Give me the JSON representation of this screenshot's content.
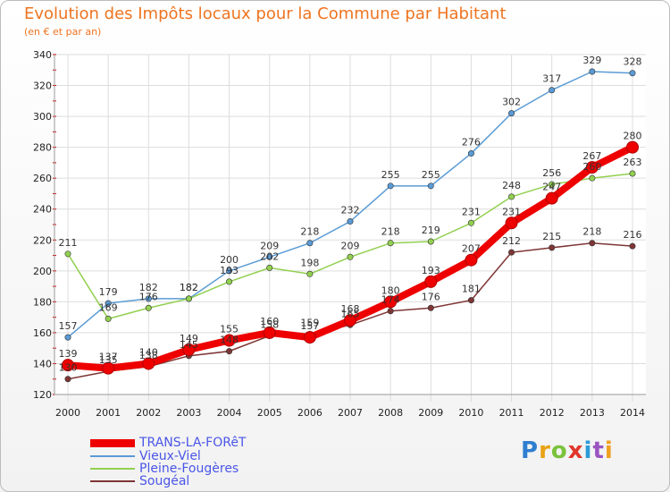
{
  "chart_data": {
    "type": "line",
    "title": "Evolution des Impôts locaux pour la Commune par Habitant",
    "subtitle": "(en € et par an)",
    "xlabel": "",
    "ylabel": "",
    "ylim": [
      120,
      340
    ],
    "yticks": [
      120,
      140,
      160,
      180,
      200,
      220,
      240,
      260,
      280,
      300,
      320,
      340
    ],
    "x": [
      "2000",
      "2001",
      "2002",
      "2003",
      "2004",
      "2005",
      "2006",
      "2007",
      "2008",
      "2009",
      "2010",
      "2011",
      "2012",
      "2013",
      "2014"
    ],
    "series": [
      {
        "name": "TRANS-LA-FORêT",
        "color": "#ee0000",
        "values": [
          139,
          137,
          140,
          149,
          155,
          160,
          157,
          168,
          180,
          193,
          207,
          231,
          247,
          267,
          280
        ]
      },
      {
        "name": "Vieux-Viel",
        "color": "#5a9bd5",
        "values": [
          157,
          179,
          182,
          182,
          200,
          209,
          218,
          232,
          255,
          255,
          276,
          302,
          317,
          329,
          328
        ]
      },
      {
        "name": "Pleine-Fougères",
        "color": "#92d050",
        "values": [
          211,
          169,
          176,
          182,
          193,
          202,
          198,
          209,
          218,
          219,
          231,
          248,
          256,
          260,
          263
        ]
      },
      {
        "name": "Sougéal",
        "color": "#7f3535",
        "values": [
          130,
          135,
          138,
          145,
          148,
          158,
          159,
          165,
          174,
          176,
          181,
          212,
          215,
          218,
          216
        ]
      }
    ]
  },
  "legend": {
    "items": [
      "TRANS-LA-FORêT",
      "Vieux-Viel",
      "Pleine-Fougères",
      "Sougéal"
    ]
  },
  "brand": {
    "letters": [
      "P",
      "r",
      "o",
      "x",
      "i",
      "t",
      "i"
    ]
  }
}
